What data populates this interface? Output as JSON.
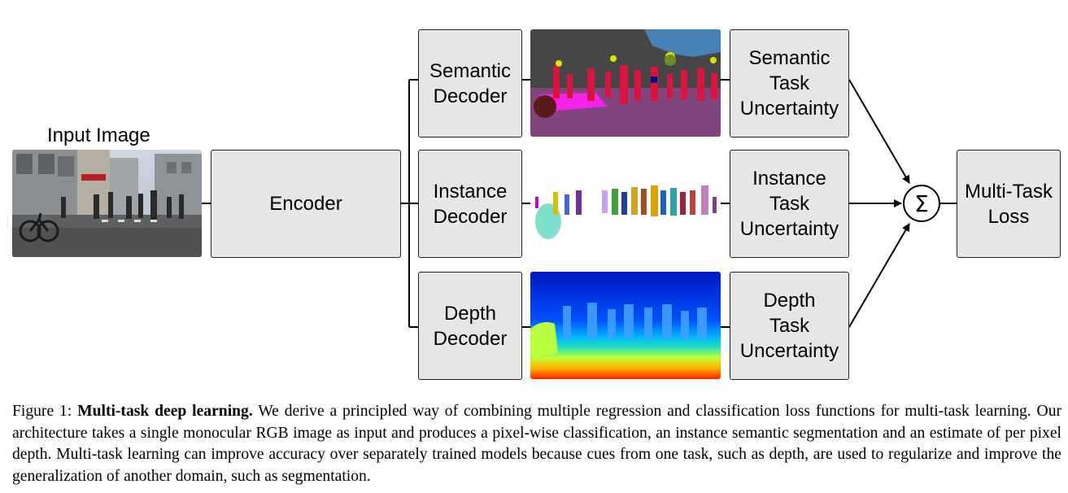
{
  "input_label": "Input Image",
  "encoder": "Encoder",
  "decoders": {
    "semantic": "Semantic\nDecoder",
    "instance": "Instance\nDecoder",
    "depth": "Depth\nDecoder"
  },
  "uncertainties": {
    "semantic": "Semantic\nTask\nUncertainty",
    "instance": "Instance\nTask\nUncertainty",
    "depth": "Depth\nTask\nUncertainty"
  },
  "sum_symbol": "Σ",
  "output": "Multi-Task\nLoss",
  "caption": {
    "figure_label": "Figure 1:",
    "title": "Multi-task deep learning.",
    "body": "We derive a principled way of combining multiple regression and classification loss functions for multi-task learning. Our architecture takes a single monocular RGB image as input and produces a pixel-wise classification, an instance semantic segmentation and an estimate of per pixel depth. Multi-task learning can improve accuracy over separately trained models because cues from one task, such as depth, are used to regularize and improve the generalization of another domain, such as segmentation."
  },
  "colors": {
    "box_fill": "#e6e6e6",
    "box_border": "#222222",
    "semantic_road": "#80457f",
    "semantic_person": "#dc143c",
    "semantic_sky": "#4682b4",
    "depth_far": "#0020c8",
    "depth_near": "#ff3000"
  }
}
